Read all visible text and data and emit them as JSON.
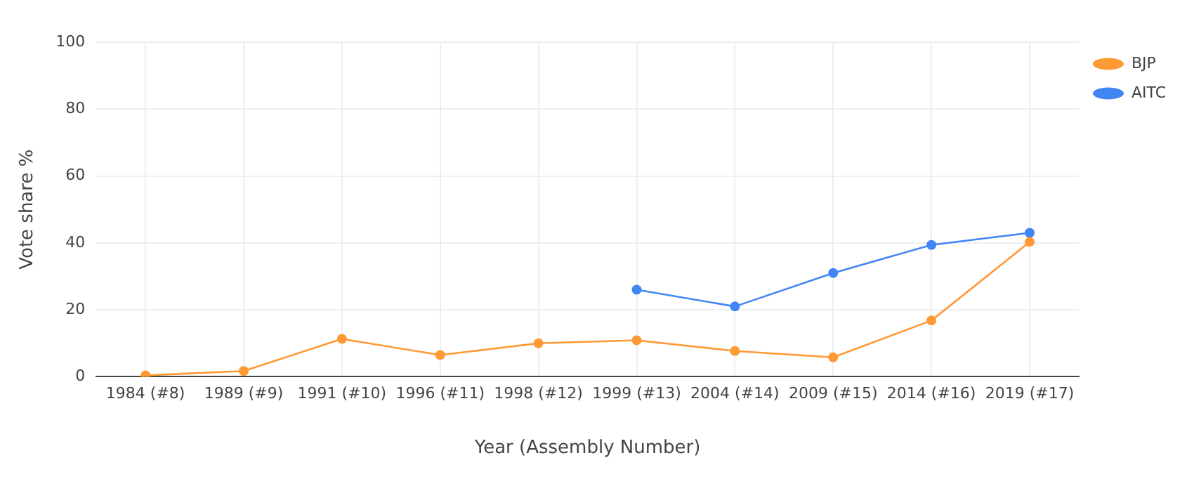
{
  "chart_data": {
    "type": "line",
    "xlabel": "Year (Assembly Number)",
    "ylabel": "Vote share %",
    "categories": [
      "1984 (#8)",
      "1989 (#9)",
      "1991 (#10)",
      "1996 (#11)",
      "1998 (#12)",
      "1999 (#13)",
      "2004 (#14)",
      "2009 (#15)",
      "2014 (#16)",
      "2019 (#17)"
    ],
    "series": [
      {
        "name": "BJP",
        "color": "#ff9933",
        "values": [
          0.4,
          1.7,
          11.3,
          6.5,
          10,
          10.9,
          7.7,
          5.8,
          16.8,
          40.3
        ]
      },
      {
        "name": "AITC",
        "color": "#4285f4",
        "values": [
          null,
          null,
          null,
          null,
          null,
          26,
          21,
          31,
          39.4,
          43
        ]
      }
    ],
    "ylim": [
      0,
      100
    ],
    "yticks": [
      0,
      20,
      40,
      60,
      80,
      100
    ],
    "grid": true,
    "legend": "top right",
    "marker": "circle",
    "line_style": "solid"
  }
}
